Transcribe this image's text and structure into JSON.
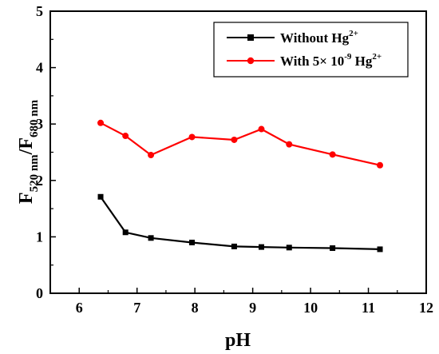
{
  "chart_data": {
    "type": "line",
    "xlabel": "pH",
    "ylabel": {
      "main1": "F",
      "sub1": "520 nm",
      "slash": "/F",
      "sub2": "680 nm"
    },
    "xlim": [
      5.5,
      12
    ],
    "ylim": [
      0,
      5
    ],
    "xticks": [
      "6",
      "7",
      "8",
      "9",
      "10",
      "11",
      "12"
    ],
    "yticks": [
      "0",
      "1",
      "2",
      "3",
      "4",
      "5"
    ],
    "grid": false,
    "legend_position": "top-right",
    "series": [
      {
        "name": "Without Hg2+",
        "legend": {
          "text": "Without Hg",
          "sup": "2+"
        },
        "marker": "square",
        "color": "#000000",
        "x": [
          6.37,
          6.8,
          7.24,
          7.95,
          8.68,
          9.15,
          9.63,
          10.38,
          11.2
        ],
        "y": [
          1.71,
          1.08,
          0.98,
          0.9,
          0.83,
          0.82,
          0.81,
          0.8,
          0.78
        ]
      },
      {
        "name": "With 5× 10-9 Hg2+",
        "legend": {
          "text": "With 5× 10",
          "sup1": "-9",
          "text2": " Hg",
          "sup2": "2+"
        },
        "marker": "circle",
        "color": "#ff0000",
        "x": [
          6.37,
          6.8,
          7.24,
          7.95,
          8.68,
          9.15,
          9.63,
          10.38,
          11.2
        ],
        "y": [
          3.02,
          2.79,
          2.45,
          2.77,
          2.72,
          2.91,
          2.64,
          2.46,
          2.27
        ]
      }
    ]
  }
}
